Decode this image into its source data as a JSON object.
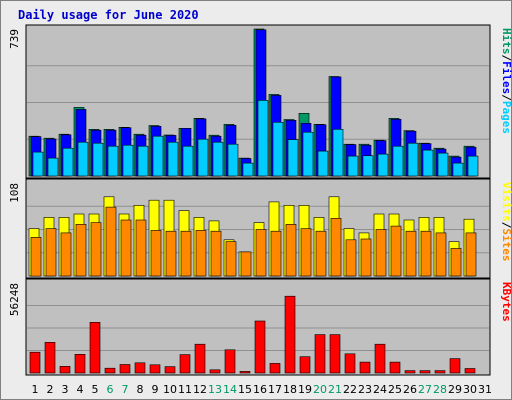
{
  "title": "Daily usage for June 2020",
  "colors": {
    "page_bg": "#ececec",
    "plot_bg": "#c0c0c0",
    "title": "#0000cc",
    "hits": "#009966",
    "files": "#0000ff",
    "pages": "#00ccff",
    "visits": "#ffff00",
    "sites": "#ff8800",
    "kbytes": "#ff0000",
    "weekend_label": "#009966",
    "weekday_label": "#000000"
  },
  "chart_data": [
    {
      "type": "bar",
      "panel": "top",
      "ymax_label": "739",
      "ylim": [
        0,
        739
      ],
      "days": [
        1,
        2,
        3,
        4,
        5,
        6,
        7,
        8,
        9,
        10,
        11,
        12,
        13,
        14,
        15,
        16,
        17,
        18,
        19,
        20,
        21,
        22,
        23,
        24,
        25,
        26,
        27,
        28,
        29,
        30
      ],
      "axis_legend": [
        {
          "text": "Hits",
          "color_key": "hits"
        },
        {
          "text": "/",
          "color_key": "weekday_label"
        },
        {
          "text": "Files",
          "color_key": "files"
        },
        {
          "text": "/",
          "color_key": "weekday_label"
        },
        {
          "text": "Pages",
          "color_key": "pages"
        }
      ],
      "series": [
        {
          "name": "Hits",
          "color_key": "hits",
          "values": [
            200,
            190,
            210,
            345,
            235,
            235,
            245,
            210,
            254,
            206,
            240,
            290,
            205,
            260,
            90,
            739,
            410,
            284,
            315,
            260,
            500,
            160,
            160,
            180,
            290,
            228,
            165,
            140,
            100,
            150
          ]
        },
        {
          "name": "Files",
          "color_key": "files",
          "values": [
            198,
            186,
            207,
            335,
            230,
            230,
            243,
            205,
            250,
            204,
            240,
            287,
            200,
            255,
            88,
            735,
            405,
            280,
            265,
            258,
            498,
            158,
            155,
            178,
            285,
            225,
            163,
            135,
            95,
            145
          ]
        },
        {
          "name": "Pages",
          "color_key": "pages",
          "values": [
            120,
            90,
            140,
            170,
            165,
            150,
            155,
            150,
            200,
            170,
            150,
            185,
            170,
            160,
            65,
            380,
            270,
            183,
            220,
            125,
            235,
            100,
            102,
            110,
            150,
            165,
            130,
            115,
            65,
            100
          ]
        }
      ]
    },
    {
      "type": "bar",
      "panel": "middle",
      "ymax_label": "108",
      "ylim": [
        0,
        108
      ],
      "axis_legend": [
        {
          "text": "Visits",
          "color_key": "visits"
        },
        {
          "text": "/",
          "color_key": "weekday_label"
        },
        {
          "text": "Sites",
          "color_key": "sites"
        }
      ],
      "series": [
        {
          "name": "Visits",
          "color_key": "visits",
          "values": [
            55,
            68,
            68,
            72,
            72,
            92,
            72,
            82,
            88,
            88,
            76,
            68,
            64,
            42,
            28,
            62,
            86,
            82,
            82,
            68,
            92,
            55,
            50,
            72,
            72,
            65,
            68,
            68,
            40,
            66
          ]
        },
        {
          "name": "Sites",
          "color_key": "sites",
          "values": [
            45,
            55,
            50,
            60,
            62,
            80,
            65,
            65,
            53,
            52,
            52,
            53,
            52,
            40,
            28,
            54,
            52,
            60,
            55,
            52,
            67,
            42,
            43,
            54,
            58,
            52,
            52,
            50,
            32,
            50
          ]
        }
      ]
    },
    {
      "type": "bar",
      "panel": "bottom",
      "ymax_label": "56248",
      "ylim": [
        0,
        56248
      ],
      "axis_legend": [
        {
          "text": "KBytes",
          "color_key": "kbytes"
        }
      ],
      "series": [
        {
          "name": "KBytes",
          "color_key": "kbytes",
          "values": [
            13000,
            19200,
            4200,
            11700,
            31700,
            3000,
            5300,
            6400,
            5100,
            4000,
            11500,
            18000,
            2000,
            14500,
            1000,
            32500,
            6000,
            48000,
            10200,
            24000,
            24000,
            12000,
            6800,
            18000,
            6800,
            1500,
            1500,
            1500,
            9000,
            2800
          ]
        }
      ]
    }
  ],
  "x_labels": [
    {
      "text": "1",
      "weekend": false
    },
    {
      "text": "2",
      "weekend": false
    },
    {
      "text": "3",
      "weekend": false
    },
    {
      "text": "4",
      "weekend": false
    },
    {
      "text": "5",
      "weekend": false
    },
    {
      "text": "6",
      "weekend": true
    },
    {
      "text": "7",
      "weekend": true
    },
    {
      "text": "8",
      "weekend": false
    },
    {
      "text": "9",
      "weekend": false
    },
    {
      "text": "10",
      "weekend": false
    },
    {
      "text": "11",
      "weekend": false
    },
    {
      "text": "12",
      "weekend": false
    },
    {
      "text": "13",
      "weekend": true
    },
    {
      "text": "14",
      "weekend": true
    },
    {
      "text": "15",
      "weekend": false
    },
    {
      "text": "16",
      "weekend": false
    },
    {
      "text": "17",
      "weekend": false
    },
    {
      "text": "18",
      "weekend": false
    },
    {
      "text": "19",
      "weekend": false
    },
    {
      "text": "20",
      "weekend": true
    },
    {
      "text": "21",
      "weekend": true
    },
    {
      "text": "22",
      "weekend": false
    },
    {
      "text": "23",
      "weekend": false
    },
    {
      "text": "24",
      "weekend": false
    },
    {
      "text": "25",
      "weekend": false
    },
    {
      "text": "26",
      "weekend": false
    },
    {
      "text": "27",
      "weekend": true
    },
    {
      "text": "28",
      "weekend": true
    },
    {
      "text": "29",
      "weekend": false
    },
    {
      "text": "30",
      "weekend": false
    },
    {
      "text": "31",
      "weekend": false
    }
  ]
}
